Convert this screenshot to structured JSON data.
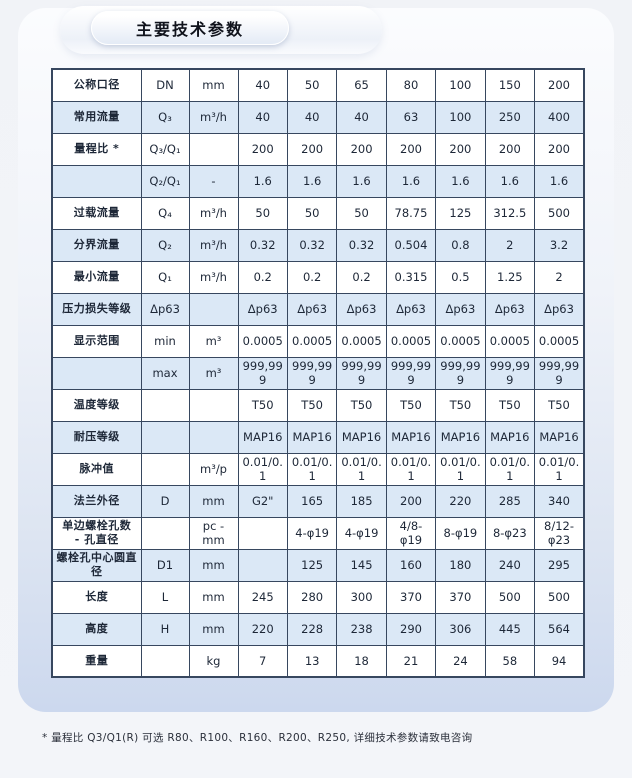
{
  "tab": {
    "title": "主要技术参数"
  },
  "table": {
    "rows": [
      {
        "label": "公称口径",
        "symbol": "DN",
        "unit": "mm",
        "values": [
          "40",
          "50",
          "65",
          "80",
          "100",
          "150",
          "200"
        ]
      },
      {
        "label": "常用流量",
        "symbol": "Q₃",
        "unit": "m³/h",
        "values": [
          "40",
          "40",
          "40",
          "63",
          "100",
          "250",
          "400"
        ]
      },
      {
        "label": "量程比 *",
        "symbol": "Q₃/Q₁",
        "unit": "",
        "values": [
          "200",
          "200",
          "200",
          "200",
          "200",
          "200",
          "200"
        ]
      },
      {
        "label": "",
        "symbol": "Q₂/Q₁",
        "unit": "-",
        "values": [
          "1.6",
          "1.6",
          "1.6",
          "1.6",
          "1.6",
          "1.6",
          "1.6"
        ]
      },
      {
        "label": "过载流量",
        "symbol": "Q₄",
        "unit": "m³/h",
        "values": [
          "50",
          "50",
          "50",
          "78.75",
          "125",
          "312.5",
          "500"
        ]
      },
      {
        "label": "分界流量",
        "symbol": "Q₂",
        "unit": "m³/h",
        "values": [
          "0.32",
          "0.32",
          "0.32",
          "0.504",
          "0.8",
          "2",
          "3.2"
        ]
      },
      {
        "label": "最小流量",
        "symbol": "Q₁",
        "unit": "m³/h",
        "values": [
          "0.2",
          "0.2",
          "0.2",
          "0.315",
          "0.5",
          "1.25",
          "2"
        ]
      },
      {
        "label": "压力损失等级",
        "symbol": "Δp63",
        "unit": "",
        "values": [
          "Δp63",
          "Δp63",
          "Δp63",
          "Δp63",
          "Δp63",
          "Δp63",
          "Δp63"
        ]
      },
      {
        "label": "显示范围",
        "symbol": "min",
        "unit": "m³",
        "values": [
          "0.0005",
          "0.0005",
          "0.0005",
          "0.0005",
          "0.0005",
          "0.0005",
          "0.0005"
        ]
      },
      {
        "label": "",
        "symbol": "max",
        "unit": "m³",
        "values": [
          "999,999",
          "999,999",
          "999,999",
          "999,999",
          "999,999",
          "999,999",
          "999,999"
        ]
      },
      {
        "label": "温度等级",
        "symbol": "",
        "unit": "",
        "values": [
          "T50",
          "T50",
          "T50",
          "T50",
          "T50",
          "T50",
          "T50"
        ]
      },
      {
        "label": "耐压等级",
        "symbol": "",
        "unit": "",
        "values": [
          "MAP16",
          "MAP16",
          "MAP16",
          "MAP16",
          "MAP16",
          "MAP16",
          "MAP16"
        ]
      },
      {
        "label": "脉冲值",
        "symbol": "",
        "unit": "m³/p",
        "values": [
          "0.01/0.1",
          "0.01/0.1",
          "0.01/0.1",
          "0.01/0.1",
          "0.01/0.1",
          "0.01/0.1",
          "0.01/0.1"
        ]
      },
      {
        "label": "法兰外径",
        "symbol": "D",
        "unit": "mm",
        "values": [
          "G2\"",
          "165",
          "185",
          "200",
          "220",
          "285",
          "340"
        ]
      },
      {
        "label": "单边螺栓孔数\n- 孔直径",
        "symbol": "",
        "unit": "pc - mm",
        "values": [
          "",
          "4-φ19",
          "4-φ19",
          "4/8-φ19",
          "8-φ19",
          "8-φ23",
          "8/12-\nφ23"
        ]
      },
      {
        "label": "螺栓孔中心圆直径",
        "symbol": "D1",
        "unit": "mm",
        "values": [
          "",
          "125",
          "145",
          "160",
          "180",
          "240",
          "295"
        ]
      },
      {
        "label": "长度",
        "symbol": "L",
        "unit": "mm",
        "values": [
          "245",
          "280",
          "300",
          "370",
          "370",
          "500",
          "500"
        ]
      },
      {
        "label": "高度",
        "symbol": "H",
        "unit": "mm",
        "values": [
          "220",
          "228",
          "238",
          "290",
          "306",
          "445",
          "564"
        ]
      },
      {
        "label": "重量",
        "symbol": "",
        "unit": "kg",
        "values": [
          "7",
          "13",
          "18",
          "21",
          "24",
          "58",
          "94"
        ]
      }
    ]
  },
  "footnote": "* 量程比 Q3/Q1(R) 可选 R80、R100、R160、R200、R250, 详细技术参数请致电咨询",
  "colors": {
    "row_alt": "#dbe8f6",
    "border": "#37475f",
    "card_bottom": "#ccd8ee"
  }
}
